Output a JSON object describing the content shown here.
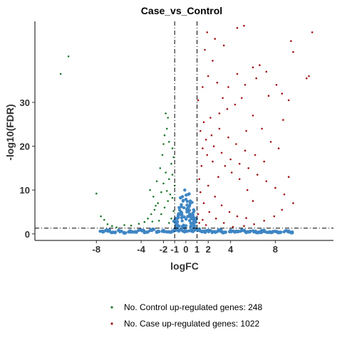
{
  "colors": {
    "control": "#1f7a2e",
    "case": "#a31515",
    "ns": "#3f86c4",
    "axis": "#000000",
    "threshold": "#000000"
  },
  "chart_data": {
    "type": "scatter",
    "title": "Case_vs_Control",
    "xlabel": "logFC",
    "ylabel": "-log10(FDR)",
    "xlim": [
      -13.5,
      13.2
    ],
    "ylim": [
      -1.5,
      48.5
    ],
    "x_ticks": [
      -8,
      -4,
      -2,
      -1,
      0,
      1,
      2,
      4,
      8
    ],
    "y_ticks": [
      0,
      10,
      20,
      30
    ],
    "thresholds": {
      "logFC": [
        -1,
        1
      ],
      "neg_log10_fdr": 1.3
    },
    "grid": false,
    "legend_position": "bottom",
    "legend": [
      {
        "key": "control",
        "label": "No. Control up-regulated genes: 248"
      },
      {
        "key": "case",
        "label": "No. Case up-regulated genes: 1022"
      }
    ],
    "series": [
      {
        "name": "No. Control up-regulated genes: 248",
        "key": "control",
        "points": [
          [
            -10.5,
            40.5
          ],
          [
            -11.2,
            36.5
          ],
          [
            -8.0,
            9.2
          ],
          [
            -7.6,
            4.0
          ],
          [
            -7.3,
            3.2
          ],
          [
            -7.0,
            2.2
          ],
          [
            -6.6,
            1.8
          ],
          [
            -6.2,
            1.5
          ],
          [
            -5.5,
            2.0
          ],
          [
            -4.9,
            1.9
          ],
          [
            -4.2,
            2.3
          ],
          [
            -3.7,
            2.7
          ],
          [
            -3.4,
            3.5
          ],
          [
            -3.1,
            4.5
          ],
          [
            -2.8,
            5.5
          ],
          [
            -2.5,
            7.0
          ],
          [
            -2.2,
            9.5
          ],
          [
            -2.0,
            11.5
          ],
          [
            -1.8,
            14.0
          ],
          [
            -1.5,
            12.5
          ],
          [
            -1.3,
            16.0
          ],
          [
            -1.1,
            17.5
          ],
          [
            -1.8,
            27.5
          ],
          [
            -1.6,
            26.5
          ],
          [
            -1.7,
            24.0
          ],
          [
            -1.9,
            22.5
          ],
          [
            -2.0,
            20.5
          ],
          [
            -1.5,
            21.0
          ],
          [
            -1.2,
            19.5
          ],
          [
            -2.1,
            18.0
          ],
          [
            -2.3,
            15.0
          ],
          [
            -2.6,
            12.0
          ],
          [
            -1.4,
            9.0
          ],
          [
            -1.6,
            7.5
          ],
          [
            -1.9,
            6.0
          ],
          [
            -2.2,
            4.5
          ],
          [
            -2.9,
            8.5
          ],
          [
            -3.2,
            10.0
          ],
          [
            -1.2,
            13.5
          ],
          [
            -1.1,
            5.2
          ],
          [
            -1.3,
            3.5
          ],
          [
            -1.5,
            2.5
          ],
          [
            -2.4,
            3.0
          ],
          [
            -3.0,
            2.8
          ],
          [
            -1.7,
            9.8
          ],
          [
            -1.2,
            8.2
          ],
          [
            -1.0,
            11.0
          ],
          [
            -2.7,
            6.4
          ]
        ]
      },
      {
        "name": "No. Case up-regulated genes: 1022",
        "key": "case",
        "points": [
          [
            4.6,
            47.0
          ],
          [
            5.2,
            47.5
          ],
          [
            1.9,
            46.0
          ],
          [
            2.6,
            44.5
          ],
          [
            3.4,
            43.0
          ],
          [
            9.4,
            44.0
          ],
          [
            11.3,
            46.0
          ],
          [
            9.6,
            41.5
          ],
          [
            11.0,
            36.0
          ],
          [
            10.8,
            35.5
          ],
          [
            6.0,
            38.0
          ],
          [
            6.6,
            38.5
          ],
          [
            7.2,
            37.0
          ],
          [
            6.3,
            35.5
          ],
          [
            5.3,
            34.0
          ],
          [
            4.6,
            36.5
          ],
          [
            8.1,
            34.0
          ],
          [
            8.6,
            32.0
          ],
          [
            8.7,
            26.0
          ],
          [
            8.3,
            19.5
          ],
          [
            9.2,
            30.5
          ],
          [
            5.0,
            31.0
          ],
          [
            4.4,
            29.5
          ],
          [
            3.7,
            28.5
          ],
          [
            3.0,
            27.5
          ],
          [
            2.2,
            26.5
          ],
          [
            1.6,
            25.5
          ],
          [
            1.3,
            23.5
          ],
          [
            1.8,
            21.5
          ],
          [
            2.5,
            20.0
          ],
          [
            3.2,
            18.5
          ],
          [
            4.0,
            17.0
          ],
          [
            4.8,
            16.0
          ],
          [
            5.6,
            15.0
          ],
          [
            6.4,
            13.5
          ],
          [
            7.2,
            12.0
          ],
          [
            8.0,
            10.5
          ],
          [
            8.8,
            9.0
          ],
          [
            9.6,
            7.0
          ],
          [
            9.2,
            13.0
          ],
          [
            8.6,
            5.5
          ],
          [
            7.9,
            4.0
          ],
          [
            7.0,
            3.0
          ],
          [
            6.1,
            2.2
          ],
          [
            5.2,
            1.8
          ],
          [
            4.2,
            1.6
          ],
          [
            3.4,
            2.5
          ],
          [
            2.7,
            3.5
          ],
          [
            2.1,
            5.0
          ],
          [
            1.6,
            7.0
          ],
          [
            1.3,
            9.5
          ],
          [
            1.2,
            12.5
          ],
          [
            1.4,
            15.5
          ],
          [
            2.0,
            11.0
          ],
          [
            2.6,
            8.5
          ],
          [
            3.2,
            6.5
          ],
          [
            3.9,
            5.0
          ],
          [
            4.6,
            4.0
          ],
          [
            5.4,
            3.6
          ],
          [
            6.0,
            7.5
          ],
          [
            5.5,
            10.0
          ],
          [
            4.8,
            12.5
          ],
          [
            4.1,
            14.0
          ],
          [
            3.5,
            15.5
          ],
          [
            2.9,
            13.0
          ],
          [
            2.4,
            16.5
          ],
          [
            1.9,
            18.0
          ],
          [
            1.5,
            19.5
          ],
          [
            2.3,
            22.5
          ],
          [
            3.0,
            24.0
          ],
          [
            3.8,
            22.0
          ],
          [
            4.5,
            20.5
          ],
          [
            5.3,
            19.0
          ],
          [
            6.2,
            18.0
          ],
          [
            7.0,
            16.5
          ],
          [
            7.6,
            21.0
          ],
          [
            6.8,
            24.0
          ],
          [
            6.0,
            27.0
          ],
          [
            5.4,
            23.5
          ],
          [
            1.1,
            30.5
          ],
          [
            1.5,
            33.5
          ],
          [
            2.0,
            36.0
          ],
          [
            2.4,
            39.5
          ],
          [
            1.7,
            42.0
          ],
          [
            3.8,
            33.5
          ],
          [
            3.3,
            31.0
          ],
          [
            2.8,
            34.5
          ],
          [
            7.4,
            31.5
          ],
          [
            1.1,
            4.5
          ],
          [
            1.2,
            2.5
          ],
          [
            1.5,
            3.2
          ],
          [
            1.8,
            2.0
          ]
        ]
      },
      {
        "name": "",
        "key": "ns",
        "cloud": true,
        "points": [
          [
            -7.5,
            0.6
          ],
          [
            -7.0,
            0.9
          ],
          [
            -6.5,
            0.4
          ],
          [
            -6.0,
            0.8
          ],
          [
            -5.5,
            0.3
          ],
          [
            -5.0,
            0.7
          ],
          [
            -4.5,
            0.5
          ],
          [
            -4.0,
            0.9
          ],
          [
            -3.5,
            0.4
          ],
          [
            -3.0,
            1.0
          ],
          [
            -2.5,
            0.6
          ],
          [
            -2.0,
            0.8
          ],
          [
            -1.5,
            0.5
          ],
          [
            -1.0,
            1.1
          ],
          [
            -0.5,
            0.9
          ],
          [
            0.0,
            0.7
          ],
          [
            0.5,
            0.9
          ],
          [
            1.0,
            1.1
          ],
          [
            1.5,
            0.6
          ],
          [
            2.0,
            0.8
          ],
          [
            2.5,
            0.5
          ],
          [
            3.0,
            0.9
          ],
          [
            3.5,
            0.4
          ],
          [
            4.0,
            0.8
          ],
          [
            4.5,
            0.6
          ],
          [
            5.0,
            0.9
          ],
          [
            5.5,
            0.5
          ],
          [
            6.0,
            0.7
          ],
          [
            6.5,
            0.4
          ],
          [
            7.0,
            0.8
          ],
          [
            7.5,
            0.5
          ],
          [
            8.0,
            0.6
          ],
          [
            8.5,
            0.4
          ],
          [
            9.0,
            0.7
          ],
          [
            9.5,
            0.4
          ],
          [
            -0.9,
            3.5
          ],
          [
            -0.6,
            6.0
          ],
          [
            -0.3,
            8.5
          ],
          [
            -0.1,
            10.0
          ],
          [
            0.2,
            9.0
          ],
          [
            0.4,
            7.5
          ],
          [
            0.7,
            5.5
          ],
          [
            0.9,
            3.5
          ],
          [
            -0.8,
            2.5
          ],
          [
            -0.5,
            4.5
          ],
          [
            0.3,
            4.0
          ],
          [
            0.6,
            2.5
          ],
          [
            -0.2,
            2.0
          ],
          [
            0.1,
            5.5
          ]
        ]
      }
    ]
  }
}
